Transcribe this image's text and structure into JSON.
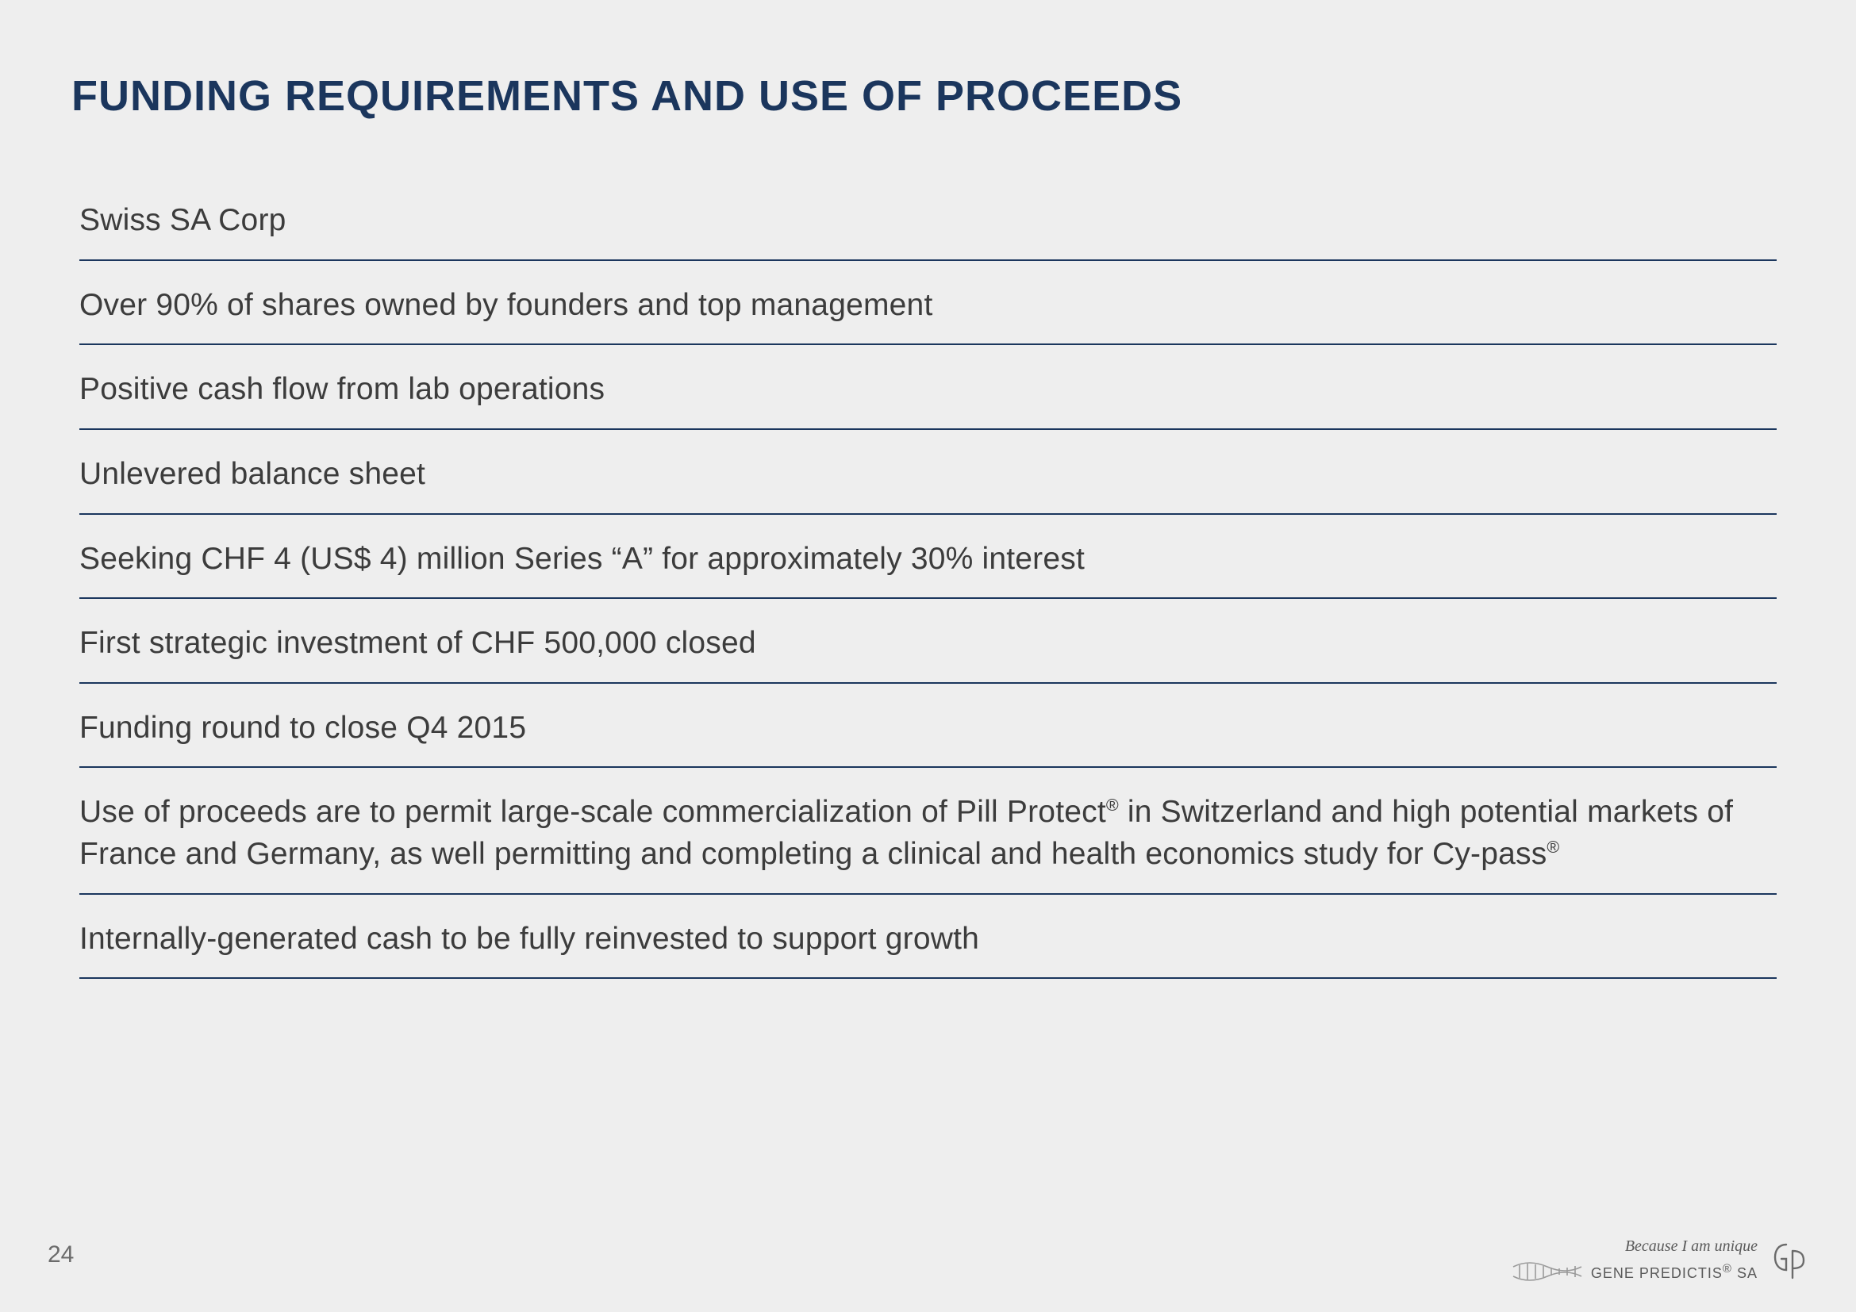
{
  "page": {
    "title": "FUNDING REQUIREMENTS AND USE OF PROCEEDS",
    "page_number": "24",
    "background_color": "#eeeeee",
    "title_color": "#1b365d",
    "title_fontsize": 54,
    "body_color": "#3c3c3c",
    "body_fontsize": 39,
    "divider_color": "#1b365d"
  },
  "items": [
    "Swiss SA Corp",
    "Over 90% of shares owned by founders and top management",
    "Positive cash flow from lab operations",
    "Unlevered balance sheet",
    "Seeking CHF 4 (US$ 4) million Series “A” for approximately 30% interest",
    "First strategic investment of CHF 500,000 closed",
    "Funding round to close Q4 2015",
    "Use of proceeds are to permit large-scale commercialization of Pill Protect® in Switzerland and high potential markets of France and Germany, as well permitting and completing a clinical and health economics study for Cy-pass®",
    "Internally-generated cash to be fully reinvested to support growth"
  ],
  "footer": {
    "tagline": "Because I am unique",
    "brand": "GENE PREDICTIS® SA",
    "helix_color": "#9a9a9a",
    "mono_color": "#6b6b6b"
  }
}
